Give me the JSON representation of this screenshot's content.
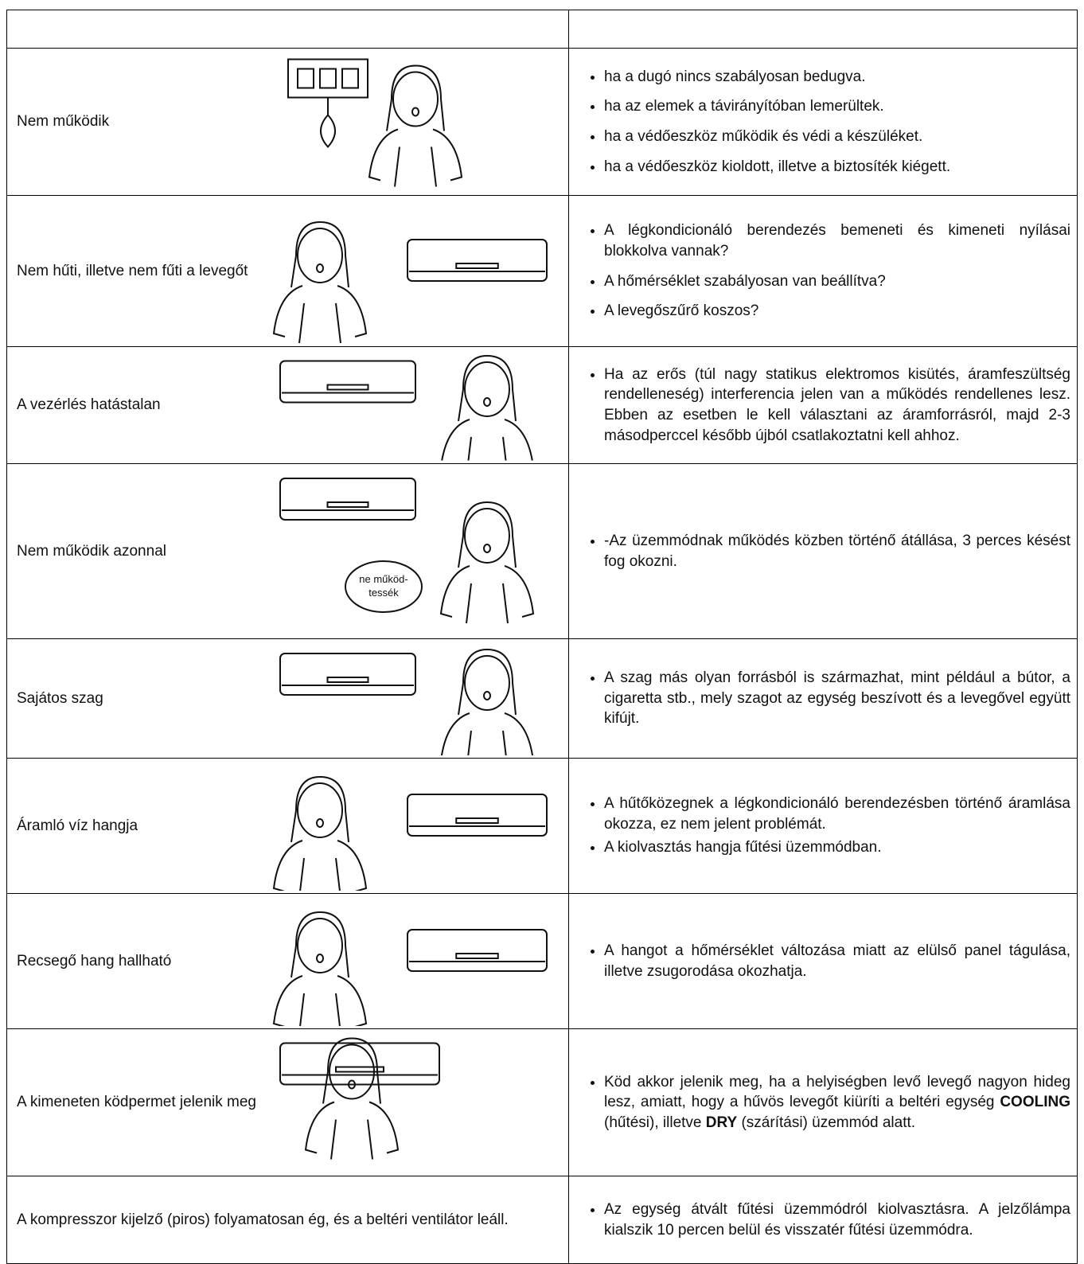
{
  "table": {
    "rows": [
      {
        "problem": "Nem működik",
        "causes": [
          [
            "ha a dugó nincs szabályosan bedugva."
          ],
          [
            "ha az elemek a távirányítóban lemerültek."
          ],
          [
            "ha a védőeszköz működik és védi a készüléket."
          ],
          [
            "ha a védőeszköz kioldott, illetve a biztosíték kiégett."
          ]
        ]
      },
      {
        "problem": "Nem hűti, illetve nem fűti a levegőt",
        "causes": [
          [
            "A légkondicionáló berendezés bemeneti és kimeneti nyílásai blokkolva vannak?"
          ],
          [
            "A hőmérséklet szabályosan van beállítva?"
          ],
          [
            "A levegőszűrő koszos?"
          ]
        ]
      },
      {
        "problem": "A vezérlés hatástalan",
        "causes": [
          [
            "Ha az erős (túl nagy statikus elektromos kisütés, áramfeszültség rendelleneség) interferencia jelen van a működés rendellenes lesz. Ebben az esetben le kell választani az áramforrásról, majd 2-3 másodperccel később újból csatlakoztatni kell ahhoz."
          ]
        ]
      },
      {
        "problem": "Nem működik azonnal",
        "bubble": [
          "ne működ-",
          "tessék"
        ],
        "causes": [
          [
            "-Az üzemmódnak működés közben történő átállása, 3 perces késést fog okozni."
          ]
        ]
      },
      {
        "problem": "Sajátos szag",
        "causes": [
          [
            "A szag más olyan forrásból is származhat, mint például a bútor, a cigaretta stb., mely szagot az egység beszívott és a levegővel együtt kifújt."
          ]
        ]
      },
      {
        "problem": "Áramló víz hangja",
        "causes": [
          [
            "A hűtőközegnek a légkondicionáló berendezésben történő áramlása okozza, ez nem jelent problémát."
          ],
          [
            "A kiolvasztás hangja fűtési üzemmódban."
          ]
        ]
      },
      {
        "problem": "Recsegő hang hallható",
        "causes": [
          [
            "A hangot a hőmérséklet változása miatt az elülső panel tágulása, illetve zsugorodása okozhatja."
          ]
        ]
      },
      {
        "problem": "A kimeneten ködpermet jelenik meg",
        "causes": [
          [
            "Köd akkor jelenik meg, ha a helyiségben levő levegő nagyon hideg lesz, amiatt, hogy a hűvös levegőt kiüríti a beltéri egység ",
            "COOLING",
            " (hűtési), illetve ",
            "DRY",
            " (szárítási) üzemmód alatt."
          ]
        ]
      },
      {
        "problem": "A kompresszor kijelző (piros) folyamatosan ég, és a beltéri ventilátor leáll.",
        "causes": [
          [
            "Az egység átvált fűtési üzemmódról kiolvasztásra. A jelzőlámpa kialszik 10 percen belül és visszatér fűtési üzemmódra."
          ]
        ]
      }
    ]
  }
}
